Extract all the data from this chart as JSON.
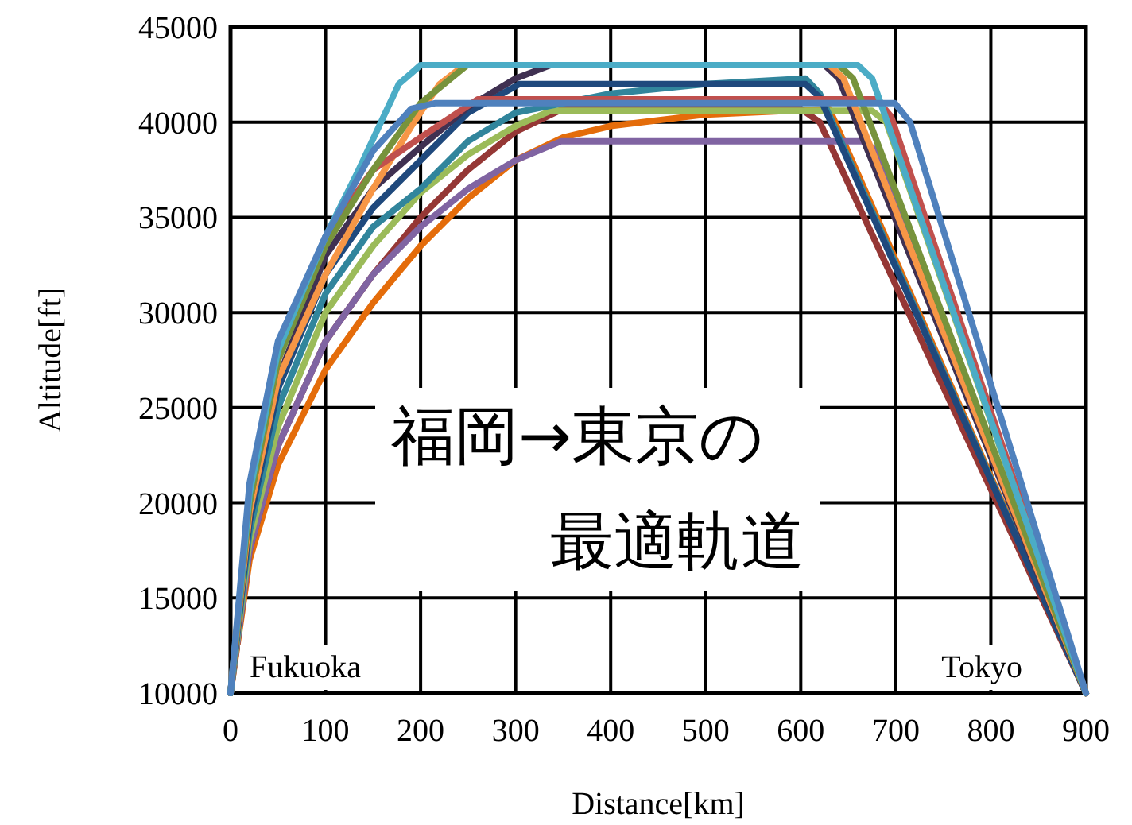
{
  "chart_data": {
    "type": "line",
    "xlabel": "Distance[km]",
    "ylabel": "Altitude[ft]",
    "xlim": [
      0,
      900
    ],
    "ylim": [
      10000,
      45000
    ],
    "xticks": [
      0,
      100,
      200,
      300,
      400,
      500,
      600,
      700,
      800,
      900
    ],
    "yticks": [
      10000,
      15000,
      20000,
      25000,
      30000,
      35000,
      40000,
      45000
    ],
    "grid": true,
    "marker": "none",
    "line_style": "solid",
    "annotations": [
      "Fukuoka",
      "Tokyo",
      "福岡→東京の",
      "最適軌道"
    ],
    "series": [
      {
        "color": "#e46c0a",
        "x": [
          0,
          20,
          50,
          100,
          150,
          200,
          250,
          300,
          350,
          400,
          500,
          630,
          900
        ],
        "values": [
          10000,
          17000,
          22000,
          27000,
          30500,
          33500,
          36000,
          38000,
          39200,
          39800,
          40400,
          40700,
          10000
        ]
      },
      {
        "color": "#953735",
        "x": [
          0,
          20,
          50,
          100,
          150,
          200,
          250,
          300,
          350,
          600,
          620,
          900
        ],
        "values": [
          10000,
          17500,
          23000,
          28500,
          32000,
          35000,
          37500,
          39500,
          40700,
          40700,
          40000,
          10000
        ]
      },
      {
        "color": "#8064a2",
        "x": [
          0,
          20,
          50,
          100,
          150,
          200,
          250,
          300,
          348,
          665,
          680,
          900
        ],
        "values": [
          10000,
          17500,
          23000,
          28500,
          32000,
          34500,
          36500,
          38000,
          39000,
          39000,
          38500,
          10000
        ]
      },
      {
        "color": "#9bbb59",
        "x": [
          0,
          20,
          50,
          100,
          150,
          200,
          250,
          300,
          337,
          675,
          690,
          900
        ],
        "values": [
          10000,
          18000,
          24000,
          30000,
          33500,
          36300,
          38300,
          39800,
          40600,
          40600,
          40000,
          10000
        ]
      },
      {
        "color": "#31859c",
        "x": [
          0,
          20,
          50,
          100,
          150,
          200,
          250,
          300,
          400,
          500,
          605,
          620,
          900
        ],
        "values": [
          10000,
          18500,
          25000,
          31000,
          34500,
          36500,
          39000,
          40500,
          41500,
          42000,
          42300,
          41500,
          10000
        ]
      },
      {
        "color": "#1f497d",
        "x": [
          0,
          20,
          50,
          100,
          150,
          200,
          250,
          304,
          605,
          620,
          900
        ],
        "values": [
          10000,
          19000,
          26000,
          32000,
          35500,
          38000,
          40500,
          42000,
          42000,
          41300,
          10000
        ]
      },
      {
        "color": "#403152",
        "x": [
          0,
          20,
          50,
          100,
          150,
          200,
          250,
          300,
          337,
          625,
          640,
          900
        ],
        "values": [
          10000,
          19500,
          26500,
          33000,
          36500,
          38700,
          40800,
          42300,
          43000,
          43000,
          42300,
          10000
        ]
      },
      {
        "color": "#f79646",
        "x": [
          0,
          20,
          50,
          100,
          150,
          193,
          220,
          246,
          630,
          645,
          900
        ],
        "values": [
          10000,
          19500,
          26500,
          32000,
          36500,
          40000,
          42000,
          43000,
          43000,
          42300,
          10000
        ]
      },
      {
        "color": "#c0504d",
        "x": [
          0,
          20,
          50,
          100,
          150,
          200,
          260,
          680,
          695,
          900
        ],
        "values": [
          10000,
          20000,
          27500,
          34000,
          37500,
          39200,
          41200,
          41200,
          40300,
          10000
        ]
      },
      {
        "color": "#77933c",
        "x": [
          0,
          20,
          50,
          100,
          150,
          200,
          249,
          640,
          655,
          900
        ],
        "values": [
          10000,
          20000,
          27500,
          33500,
          37500,
          41000,
          43000,
          43000,
          42300,
          10000
        ]
      },
      {
        "color": "#4bacc6",
        "x": [
          0,
          20,
          50,
          100,
          133,
          177,
          200,
          660,
          675,
          900
        ],
        "values": [
          10000,
          20500,
          28000,
          34000,
          37300,
          42000,
          43000,
          43000,
          42300,
          10000
        ]
      },
      {
        "color": "#4f81bd",
        "x": [
          0,
          20,
          50,
          100,
          150,
          190,
          215,
          699,
          715,
          900
        ],
        "values": [
          10000,
          21000,
          28500,
          34000,
          38500,
          40700,
          41000,
          41000,
          40000,
          10000
        ]
      }
    ]
  }
}
